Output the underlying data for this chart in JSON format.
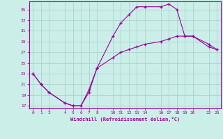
{
  "xlabel": "Windchill (Refroidissement éolien,°C)",
  "background_color": "#cceee8",
  "grid_color": "#aad4cc",
  "line_color": "#990099",
  "xlim": [
    -0.5,
    23.5
  ],
  "ylim": [
    16.5,
    36.5
  ],
  "xticks": [
    0,
    1,
    2,
    4,
    5,
    6,
    7,
    8,
    10,
    11,
    12,
    13,
    14,
    16,
    17,
    18,
    19,
    20,
    22,
    23
  ],
  "yticks": [
    17,
    19,
    21,
    23,
    25,
    27,
    29,
    31,
    33,
    35
  ],
  "series1_x": [
    0,
    1,
    2,
    4,
    5,
    6,
    7,
    8,
    10,
    11,
    12,
    13,
    14,
    16,
    17,
    18,
    19,
    20,
    22,
    23
  ],
  "series1_y": [
    23,
    21,
    19.5,
    17.5,
    17,
    17,
    19.5,
    24,
    30,
    32.5,
    34,
    35.5,
    35.5,
    35.5,
    36,
    35,
    30,
    30,
    28.5,
    27.5
  ],
  "series2_x": [
    0,
    1,
    2,
    4,
    5,
    6,
    7,
    8,
    10,
    11,
    12,
    13,
    14,
    16,
    17,
    18,
    19,
    20,
    22,
    23
  ],
  "series2_y": [
    23,
    21,
    19.5,
    17.5,
    17,
    17,
    20,
    24,
    26,
    27,
    27.5,
    28,
    28.5,
    29,
    29.5,
    30,
    30,
    30,
    28,
    27.5
  ]
}
